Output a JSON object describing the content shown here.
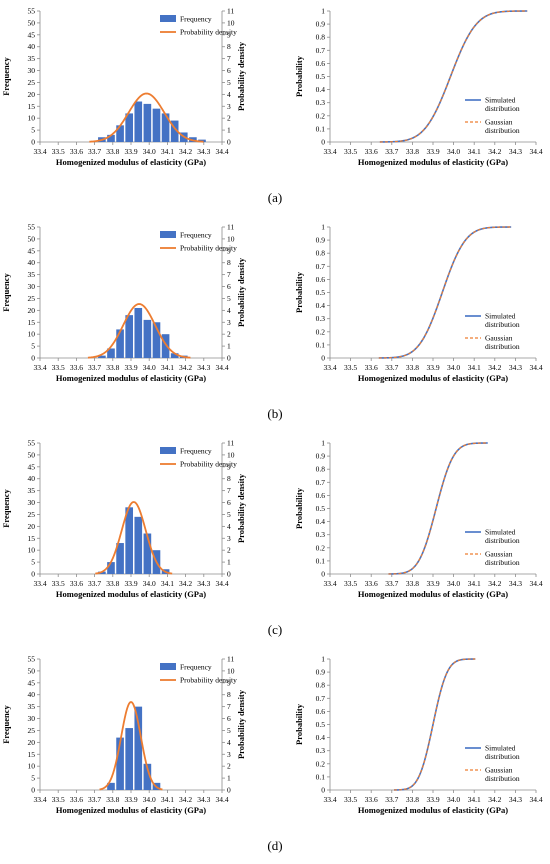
{
  "figure": {
    "panel_labels": [
      "(a)",
      "(b)",
      "(c)",
      "(d)"
    ]
  },
  "colors": {
    "bar": "#4472C4",
    "density": "#ED7D31",
    "simulated": "#4472C4",
    "gaussian": "#ED7D31",
    "axis": "#8c8c8c"
  },
  "chart_data": [
    {
      "panel": "(a)",
      "type": "bar",
      "xlabel": "Homogenized modulus of elasticity (GPa)",
      "ylabel": "Frequency",
      "y2label": "Probability density",
      "xlim": [
        33.4,
        34.4
      ],
      "ylim": [
        0,
        55
      ],
      "y2lim": [
        0,
        11
      ],
      "x_ticks": [
        "33.4",
        "33.5",
        "33.6",
        "33.7",
        "33.8",
        "33.9",
        "34.0",
        "34.1",
        "34.2",
        "34.3",
        "34.4"
      ],
      "y_ticks": [
        "0",
        "5",
        "10",
        "15",
        "20",
        "25",
        "30",
        "35",
        "40",
        "45",
        "50",
        "55"
      ],
      "y2_ticks": [
        "0",
        "1",
        "2",
        "3",
        "4",
        "5",
        "6",
        "7",
        "8",
        "9",
        "10",
        "11"
      ],
      "legend": [
        "Frequency",
        "Probability density"
      ],
      "bars": {
        "x": [
          33.74,
          33.79,
          33.84,
          33.89,
          33.94,
          33.99,
          34.04,
          34.09,
          34.14,
          34.19,
          34.24,
          34.29
        ],
        "values": [
          2,
          3,
          7,
          12,
          17,
          16,
          14,
          12,
          9,
          4,
          2,
          1
        ]
      },
      "density": {
        "mean": 33.985,
        "std": 0.098
      }
    },
    {
      "panel": "(a)",
      "type": "line",
      "xlabel": "Homogenized modulus of elasticity (GPa)",
      "ylabel": "Probability",
      "xlim": [
        33.4,
        34.4
      ],
      "ylim": [
        0,
        1
      ],
      "x_ticks": [
        "33.4",
        "33.5",
        "33.6",
        "33.7",
        "33.8",
        "33.9",
        "34.0",
        "34.1",
        "34.2",
        "34.3",
        "34.4"
      ],
      "y_ticks": [
        "0",
        "0.1",
        "0.2",
        "0.3",
        "0.4",
        "0.5",
        "0.6",
        "0.7",
        "0.8",
        "0.9",
        "1"
      ],
      "legend": [
        [
          "Simulated",
          "distribution"
        ],
        [
          "Gaussian",
          "distribution"
        ]
      ],
      "cdf": {
        "mean": 33.985,
        "std": 0.098
      }
    },
    {
      "panel": "(b)",
      "type": "bar",
      "xlabel": "Homogenized modulus of elasticity (GPa)",
      "ylabel": "Frequency",
      "y2label": "Probability density",
      "xlim": [
        33.4,
        34.4
      ],
      "ylim": [
        0,
        55
      ],
      "y2lim": [
        0,
        11
      ],
      "x_ticks": [
        "33.4",
        "33.5",
        "33.6",
        "33.7",
        "33.8",
        "33.9",
        "34.0",
        "34.1",
        "34.2",
        "34.3",
        "34.4"
      ],
      "y_ticks": [
        "0",
        "5",
        "10",
        "15",
        "20",
        "25",
        "30",
        "35",
        "40",
        "45",
        "50",
        "55"
      ],
      "y2_ticks": [
        "0",
        "1",
        "2",
        "3",
        "4",
        "5",
        "6",
        "7",
        "8",
        "9",
        "10",
        "11"
      ],
      "legend": [
        "Frequency",
        "Probability density"
      ],
      "bars": {
        "x": [
          33.74,
          33.79,
          33.84,
          33.89,
          33.94,
          33.99,
          34.04,
          34.09,
          34.14,
          34.19
        ],
        "values": [
          1,
          4,
          12,
          18,
          21,
          16,
          15,
          10,
          2,
          1
        ]
      },
      "density": {
        "mean": 33.945,
        "std": 0.088
      }
    },
    {
      "panel": "(b)",
      "type": "line",
      "xlabel": "Homogenized modulus of elasticity (GPa)",
      "ylabel": "Probability",
      "xlim": [
        33.4,
        34.4
      ],
      "ylim": [
        0,
        1
      ],
      "x_ticks": [
        "33.4",
        "33.5",
        "33.6",
        "33.7",
        "33.8",
        "33.9",
        "34.0",
        "34.1",
        "34.2",
        "34.3",
        "34.4"
      ],
      "y_ticks": [
        "0",
        "0.1",
        "0.2",
        "0.3",
        "0.4",
        "0.5",
        "0.6",
        "0.7",
        "0.8",
        "0.9",
        "1"
      ],
      "legend": [
        [
          "Simulated",
          "distribution"
        ],
        [
          "Gaussian",
          "distribution"
        ]
      ],
      "cdf": {
        "mean": 33.945,
        "std": 0.088
      }
    },
    {
      "panel": "(c)",
      "type": "bar",
      "xlabel": "Homogenized modulus of elasticity (GPa)",
      "ylabel": "Frequency",
      "y2label": "Probability density",
      "xlim": [
        33.4,
        34.4
      ],
      "ylim": [
        0,
        55
      ],
      "y2lim": [
        0,
        11
      ],
      "x_ticks": [
        "33.4",
        "33.5",
        "33.6",
        "33.7",
        "33.8",
        "33.9",
        "34.0",
        "34.1",
        "34.2",
        "34.3",
        "34.4"
      ],
      "y_ticks": [
        "0",
        "5",
        "10",
        "15",
        "20",
        "25",
        "30",
        "35",
        "40",
        "45",
        "50",
        "55"
      ],
      "y2_ticks": [
        "0",
        "1",
        "2",
        "3",
        "4",
        "5",
        "6",
        "7",
        "8",
        "9",
        "10",
        "11"
      ],
      "legend": [
        "Frequency",
        "Probability density"
      ],
      "bars": {
        "x": [
          33.74,
          33.79,
          33.84,
          33.89,
          33.94,
          33.99,
          34.04,
          34.09
        ],
        "values": [
          1,
          5,
          13,
          28,
          24,
          17,
          10,
          2
        ]
      },
      "density": {
        "mean": 33.915,
        "std": 0.066
      }
    },
    {
      "panel": "(c)",
      "type": "line",
      "xlabel": "Homogenized modulus of elasticity (GPa)",
      "ylabel": "Probability",
      "xlim": [
        33.4,
        34.4
      ],
      "ylim": [
        0,
        1
      ],
      "x_ticks": [
        "33.4",
        "33.5",
        "33.6",
        "33.7",
        "33.8",
        "33.9",
        "34.0",
        "34.1",
        "34.2",
        "34.3",
        "34.4"
      ],
      "y_ticks": [
        "0",
        "0.1",
        "0.2",
        "0.3",
        "0.4",
        "0.5",
        "0.6",
        "0.7",
        "0.8",
        "0.9",
        "1"
      ],
      "legend": [
        [
          "Simulated",
          "distribution"
        ],
        [
          "Gaussian",
          "distribution"
        ]
      ],
      "cdf": {
        "mean": 33.915,
        "std": 0.066
      }
    },
    {
      "panel": "(d)",
      "type": "bar",
      "xlabel": "Homogenized modulus of elasticity (GPa)",
      "ylabel": "Frequency",
      "y2label": "Probability density",
      "xlim": [
        33.4,
        34.4
      ],
      "ylim": [
        0,
        55
      ],
      "y2lim": [
        0,
        11
      ],
      "x_ticks": [
        "33.4",
        "33.5",
        "33.6",
        "33.7",
        "33.8",
        "33.9",
        "34.0",
        "34.1",
        "34.2",
        "34.3",
        "34.4"
      ],
      "y_ticks": [
        "0",
        "5",
        "10",
        "15",
        "20",
        "25",
        "30",
        "35",
        "40",
        "45",
        "50",
        "55"
      ],
      "y2_ticks": [
        "0",
        "1",
        "2",
        "3",
        "4",
        "5",
        "6",
        "7",
        "8",
        "9",
        "10",
        "11"
      ],
      "legend": [
        "Frequency",
        "Probability density"
      ],
      "bars": {
        "x": [
          33.79,
          33.84,
          33.89,
          33.94,
          33.99,
          34.04
        ],
        "values": [
          3,
          22,
          26,
          35,
          11,
          3
        ]
      },
      "density": {
        "mean": 33.9,
        "std": 0.054
      }
    },
    {
      "panel": "(d)",
      "type": "line",
      "xlabel": "Homogenized modulus of elasticity (GPa)",
      "ylabel": "Probability",
      "xlim": [
        33.4,
        34.4
      ],
      "ylim": [
        0,
        1
      ],
      "x_ticks": [
        "33.4",
        "33.5",
        "33.6",
        "33.7",
        "33.8",
        "33.9",
        "34.0",
        "34.1",
        "34.2",
        "34.3",
        "34.4"
      ],
      "y_ticks": [
        "0",
        "0.1",
        "0.2",
        "0.3",
        "0.4",
        "0.5",
        "0.6",
        "0.7",
        "0.8",
        "0.9",
        "1"
      ],
      "legend": [
        [
          "Simulated",
          "distribution"
        ],
        [
          "Gaussian",
          "distribution"
        ]
      ],
      "cdf": {
        "mean": 33.9,
        "std": 0.054
      }
    }
  ]
}
